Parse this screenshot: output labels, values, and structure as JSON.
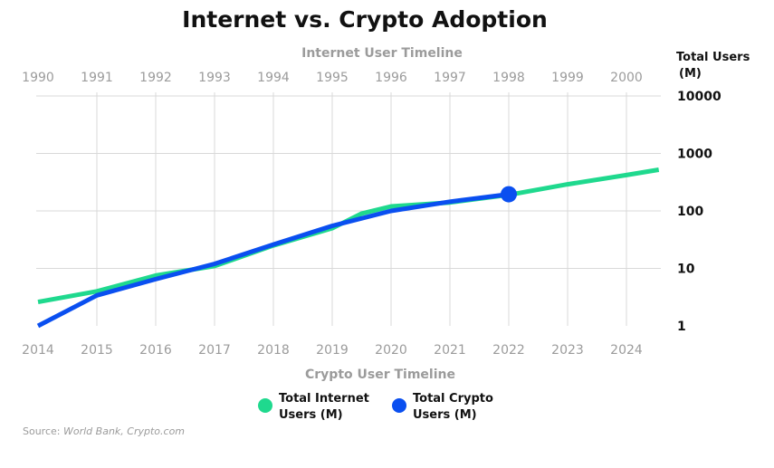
{
  "chart_data": {
    "type": "line",
    "title": "Internet vs. Crypto Adoption",
    "x_top_label": "Internet User Timeline",
    "x_bottom_label": "Crypto User Timeline",
    "ylabel_line1": "Total Users",
    "ylabel_line2": "(M)",
    "y_scale": "log",
    "ylim": [
      1,
      10000
    ],
    "yticks": [
      "1",
      "10",
      "100",
      "1000",
      "10000"
    ],
    "x_top_ticks": [
      "1990",
      "1991",
      "1992",
      "1993",
      "1994",
      "1995",
      "1996",
      "1997",
      "1998",
      "1999",
      "2000"
    ],
    "x_bottom_ticks": [
      "2014",
      "2015",
      "2016",
      "2017",
      "2018",
      "2019",
      "2020",
      "2021",
      "2022",
      "2023",
      "2024"
    ],
    "grid": true,
    "series": [
      {
        "name_line1": "Total Internet",
        "name_line2": "Users (M)",
        "color": "#1fd98e",
        "x_axis": "top",
        "x": [
          1990,
          1991,
          1992,
          1993,
          1994,
          1995,
          1995.5,
          1996,
          1997,
          1998,
          1999,
          2000,
          2000.55
        ],
        "y": [
          2.6,
          4.0,
          7.5,
          11,
          25,
          50,
          90,
          120,
          140,
          190,
          290,
          420,
          520
        ]
      },
      {
        "name_line1": "Total Crypto",
        "name_line2": "Users (M)",
        "color": "#0a4ff0",
        "x_axis": "bottom",
        "x": [
          2014,
          2015,
          2016,
          2017,
          2018,
          2019,
          2020,
          2021,
          2022
        ],
        "y": [
          1.0,
          3.4,
          6.5,
          12,
          26,
          55,
          100,
          145,
          195
        ],
        "end_marker": true
      }
    ],
    "legend_position": "bottom-center",
    "source_label": "Source:",
    "source_text": "World Bank, Crypto.com"
  }
}
